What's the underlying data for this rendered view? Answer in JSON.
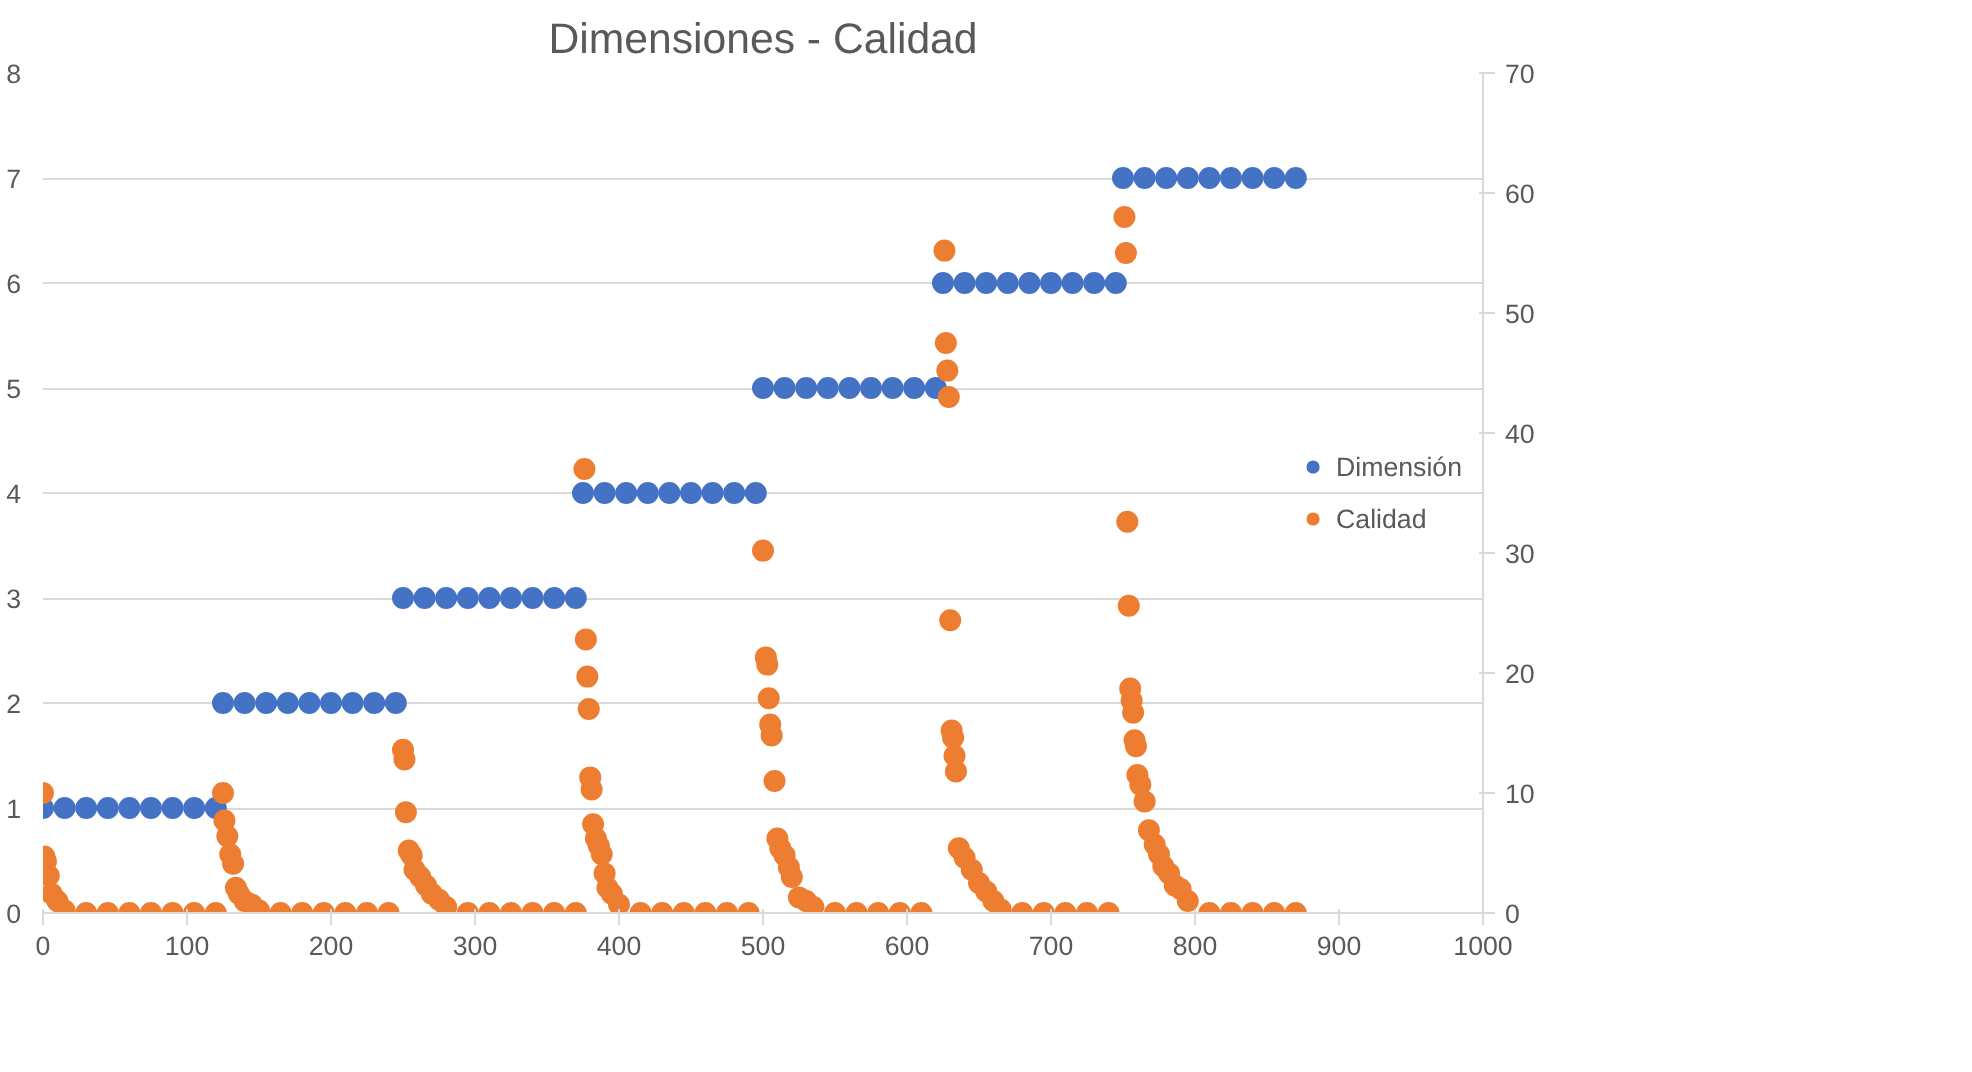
{
  "chart_data": {
    "type": "scatter",
    "title": "Dimensiones - Calidad",
    "xlim": [
      0,
      1000
    ],
    "xticks": [
      0,
      100,
      200,
      300,
      400,
      500,
      600,
      700,
      800,
      900,
      1000
    ],
    "ylim": [
      0,
      8
    ],
    "yticks": [
      0,
      1,
      2,
      3,
      4,
      5,
      6,
      7,
      8
    ],
    "y2lim": [
      0,
      70
    ],
    "y2ticks": [
      0,
      10,
      20,
      30,
      40,
      50,
      60,
      70
    ],
    "grid": "y",
    "legend": "right",
    "marker": "circle",
    "series": [
      {
        "name": "Dimensión",
        "color": "#4472c4",
        "x": [
          0,
          15,
          30,
          45,
          60,
          75,
          90,
          105,
          120,
          125,
          140,
          155,
          170,
          185,
          200,
          215,
          230,
          245,
          250,
          265,
          280,
          295,
          310,
          325,
          340,
          355,
          370,
          375,
          390,
          405,
          420,
          435,
          450,
          465,
          480,
          495,
          500,
          515,
          530,
          545,
          560,
          575,
          590,
          605,
          620,
          625,
          640,
          655,
          670,
          685,
          700,
          715,
          730,
          745,
          750,
          765,
          780,
          795,
          810,
          825,
          840,
          855,
          870
        ],
        "values": [
          1,
          1,
          1,
          1,
          1,
          1,
          1,
          1,
          1,
          2,
          2,
          2,
          2,
          2,
          2,
          2,
          2,
          2,
          3,
          3,
          3,
          3,
          3,
          3,
          3,
          3,
          3,
          4,
          4,
          4,
          4,
          4,
          4,
          4,
          4,
          4,
          5,
          5,
          5,
          5,
          5,
          5,
          5,
          5,
          5,
          6,
          6,
          6,
          6,
          6,
          6,
          6,
          6,
          6,
          7,
          7,
          7,
          7,
          7,
          7,
          7,
          7,
          7
        ]
      },
      {
        "name": "Calidad",
        "color": "#ed7d31",
        "axis": "y2",
        "x": [
          0,
          1,
          2,
          4,
          6,
          10,
          15,
          30,
          45,
          60,
          75,
          90,
          105,
          120,
          125,
          126,
          128,
          130,
          132,
          134,
          136,
          140,
          145,
          150,
          165,
          180,
          195,
          210,
          225,
          240,
          250,
          251,
          252,
          254,
          256,
          258,
          262,
          266,
          270,
          275,
          280,
          295,
          310,
          325,
          340,
          355,
          370,
          376,
          377,
          378,
          379,
          380,
          381,
          382,
          384,
          386,
          388,
          390,
          392,
          395,
          400,
          415,
          430,
          445,
          460,
          475,
          490,
          500,
          502,
          503,
          504,
          505,
          506,
          508,
          510,
          512,
          515,
          518,
          520,
          525,
          530,
          535,
          550,
          565,
          580,
          595,
          610,
          626,
          627,
          628,
          629,
          630,
          631,
          632,
          633,
          634,
          636,
          640,
          645,
          650,
          655,
          660,
          665,
          680,
          695,
          710,
          725,
          740,
          751,
          752,
          753,
          754,
          755,
          756,
          757,
          758,
          759,
          760,
          762,
          765,
          768,
          772,
          775,
          778,
          782,
          786,
          790,
          795,
          810,
          825,
          840,
          855,
          870
        ],
        "values": [
          10,
          4.7,
          4.3,
          3.1,
          1.6,
          1,
          0.2,
          0,
          0,
          0,
          0,
          0,
          0,
          0,
          10,
          7.7,
          6.4,
          4.9,
          4.1,
          2.1,
          1.6,
          1,
          0.7,
          0.2,
          0,
          0,
          0,
          0,
          0,
          0,
          13.6,
          12.8,
          8.4,
          5.2,
          4.8,
          3.6,
          3,
          2.3,
          1.6,
          1.1,
          0.5,
          0,
          0,
          0,
          0,
          0,
          0,
          37,
          22.8,
          19.7,
          17,
          11.3,
          10.3,
          7.4,
          6.2,
          5.6,
          4.9,
          3.3,
          2.1,
          1.6,
          0.7,
          0,
          0,
          0,
          0,
          0,
          0,
          30.2,
          21.3,
          20.7,
          17.9,
          15.7,
          14.8,
          11,
          6.2,
          5.4,
          4.8,
          3.8,
          3,
          1.3,
          1,
          0.5,
          0,
          0,
          0,
          0,
          0,
          55.2,
          47.5,
          45.2,
          43,
          24.4,
          15.2,
          14.6,
          13.1,
          11.8,
          5.4,
          4.6,
          3.6,
          2.5,
          1.8,
          1,
          0.3,
          0,
          0,
          0,
          0,
          0,
          58,
          55,
          32.6,
          25.6,
          18.7,
          17.7,
          16.7,
          14.4,
          13.9,
          11.5,
          10.7,
          9.3,
          6.9,
          5.7,
          4.9,
          3.9,
          3.3,
          2.3,
          2,
          1,
          0,
          0,
          0,
          0,
          0
        ]
      }
    ]
  }
}
